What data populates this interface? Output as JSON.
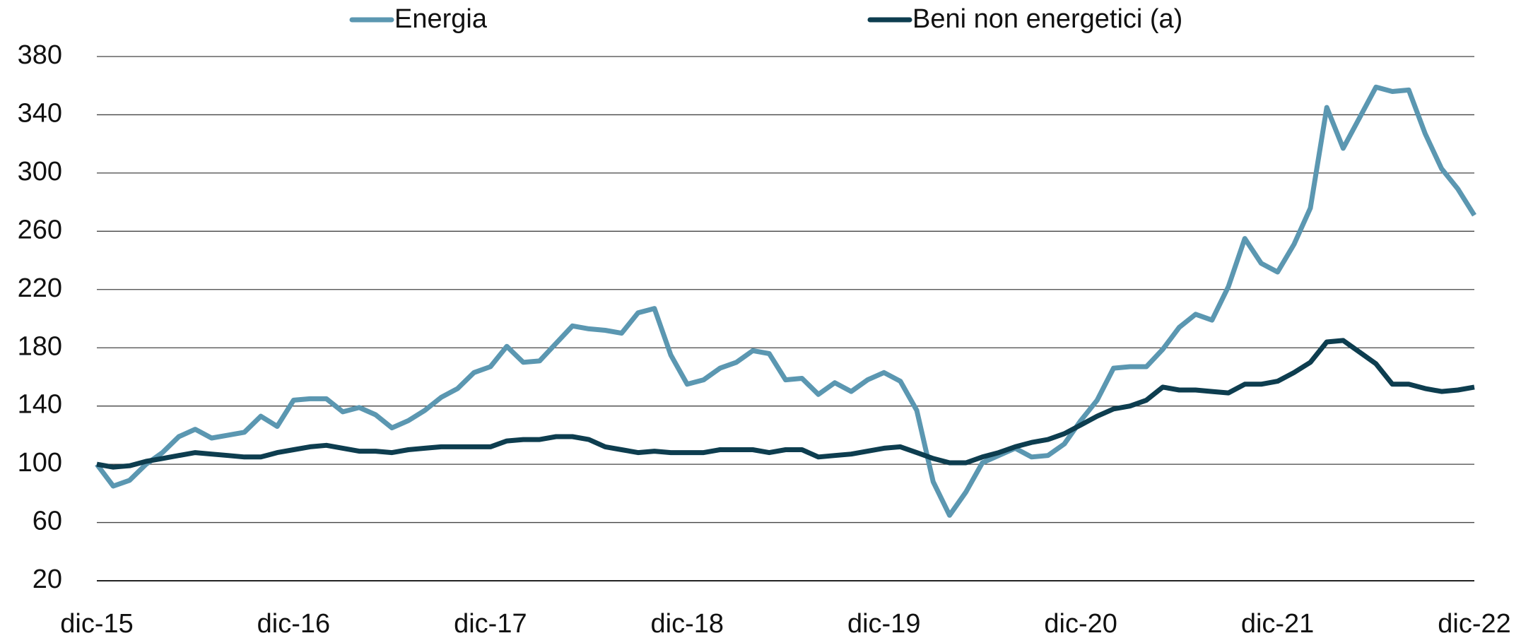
{
  "chart_data": {
    "type": "line",
    "categories": [
      "dic-15",
      null,
      null,
      null,
      null,
      null,
      null,
      null,
      null,
      null,
      null,
      null,
      "dic-16",
      null,
      null,
      null,
      null,
      null,
      null,
      null,
      null,
      null,
      null,
      null,
      "dic-17",
      null,
      null,
      null,
      null,
      null,
      null,
      null,
      null,
      null,
      null,
      null,
      "dic-18",
      null,
      null,
      null,
      null,
      null,
      null,
      null,
      null,
      null,
      null,
      null,
      "dic-19",
      null,
      null,
      null,
      null,
      null,
      null,
      null,
      null,
      null,
      null,
      null,
      "dic-20",
      null,
      null,
      null,
      null,
      null,
      null,
      null,
      null,
      null,
      null,
      null,
      "dic-21",
      null,
      null,
      null,
      null,
      null,
      null,
      null,
      null,
      null,
      null,
      null,
      "dic-22"
    ],
    "series": [
      {
        "name": "Energia",
        "color": "#5b97b1",
        "values": [
          100,
          85,
          89,
          100,
          108,
          119,
          124,
          118,
          120,
          122,
          133,
          126,
          144,
          145,
          145,
          136,
          139,
          134,
          125,
          130,
          137,
          146,
          152,
          163,
          167,
          181,
          170,
          171,
          183,
          195,
          193,
          192,
          190,
          204,
          207,
          175,
          155,
          158,
          166,
          170,
          178,
          176,
          158,
          159,
          148,
          156,
          150,
          158,
          163,
          157,
          137,
          88,
          65,
          81,
          101,
          106,
          111,
          105,
          106,
          114,
          130,
          144,
          166,
          167,
          167,
          179,
          194,
          203,
          199,
          222,
          255,
          238,
          232,
          251,
          276,
          345,
          317,
          338,
          359,
          356,
          357,
          327,
          303,
          289,
          271
        ]
      },
      {
        "name": "Beni non energetici (a)",
        "color": "#0d3d4f",
        "values": [
          100,
          98,
          99,
          102,
          104,
          106,
          108,
          107,
          106,
          105,
          105,
          108,
          110,
          112,
          113,
          111,
          109,
          109,
          108,
          110,
          111,
          112,
          112,
          112,
          112,
          116,
          117,
          117,
          119,
          119,
          117,
          112,
          110,
          108,
          109,
          108,
          108,
          108,
          110,
          110,
          110,
          108,
          110,
          110,
          105,
          106,
          107,
          109,
          111,
          112,
          108,
          104,
          101,
          101,
          105,
          108,
          112,
          115,
          117,
          121,
          127,
          133,
          138,
          140,
          144,
          153,
          151,
          151,
          150,
          149,
          155,
          155,
          157,
          163,
          170,
          184,
          185,
          177,
          169,
          155,
          155,
          152,
          150,
          151,
          153
        ]
      }
    ],
    "ylim": [
      20,
      380
    ],
    "yticks": [
      20,
      60,
      100,
      140,
      180,
      220,
      260,
      300,
      340,
      380
    ],
    "grid": true
  }
}
